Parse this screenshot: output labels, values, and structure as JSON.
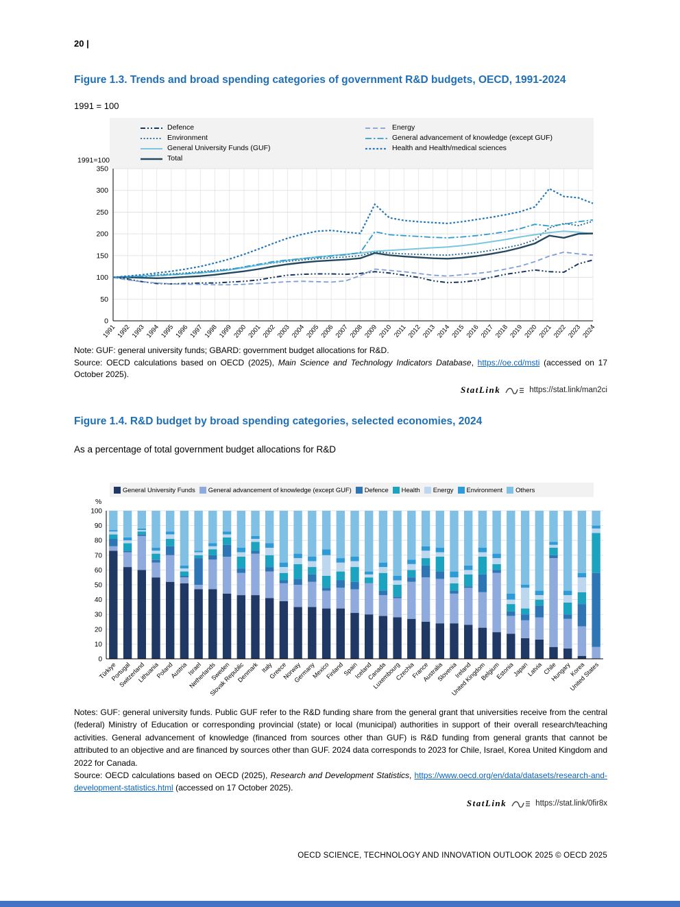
{
  "page": {
    "number": "20 |",
    "footer": "OECD SCIENCE, TECHNOLOGY AND INNOVATION OUTLOOK 2025 © OECD 2025"
  },
  "fig13": {
    "title": "Figure 1.3. Trends and broad spending categories of government R&D budgets, OECD, 1991-2024",
    "subtitle": "1991 = 100",
    "note": "Note: GUF: general university funds; GBARD: government budget allocations for R&D.",
    "source_prefix": "Source: OECD calculations based on OECD (2025), ",
    "source_italic": "Main Science and Technology Indicators Database",
    "source_mid": ", ",
    "source_link": "https://oe.cd/msti",
    "source_suffix": " (accessed on 17 October 2025).",
    "statlink_label": "StatLink",
    "statlink_url": "https://stat.link/man2ci"
  },
  "fig14": {
    "title": "Figure 1.4. R&D budget by broad spending categories, selected economies, 2024",
    "subtitle": "As a percentage of total government budget allocations for R&D",
    "notes": "Notes: GUF: general university funds. Public GUF refer to the R&D funding share from the general grant that universities receive from the central (federal) Ministry of Education or corresponding provincial (state) or local (municipal) authorities in support of their overall research/teaching activities. General advancement of knowledge (financed from sources other than GUF) is R&D funding from general grants that cannot be attributed to an objective and are financed by sources other than GUF. 2024 data corresponds to 2023 for Chile, Israel, Korea United Kingdom and 2022 for Canada.",
    "source_prefix": "Source: OECD calculations based on OECD (2025), ",
    "source_italic": "Research and Development Statistics",
    "source_mid": ", ",
    "source_link": "https://www.oecd.org/en/data/datasets/research-and-development-statistics.html",
    "source_suffix": " (accessed on 17 October 2025).",
    "statlink_label": "StatLink",
    "statlink_url": "https://stat.link/0fir8x"
  },
  "chart_data": [
    {
      "type": "line",
      "title": "Trends and broad spending categories of government R&D budgets, OECD, 1991-2024",
      "index_label": "1991=100",
      "xlabel": "",
      "ylabel": "1991=100",
      "ylim": [
        0,
        350
      ],
      "ytick_step": 50,
      "grid": true,
      "legend_position": "top",
      "x": [
        1991,
        1992,
        1993,
        1994,
        1995,
        1996,
        1997,
        1998,
        1999,
        2000,
        2001,
        2002,
        2003,
        2004,
        2005,
        2006,
        2007,
        2008,
        2009,
        2010,
        2011,
        2012,
        2013,
        2014,
        2015,
        2016,
        2017,
        2018,
        2019,
        2020,
        2021,
        2022,
        2023,
        2024
      ],
      "series": [
        {
          "name": "Defence",
          "color": "#17375e",
          "dash": "7 3 2 3 2 3",
          "width": 2,
          "values": [
            100,
            96,
            90,
            86,
            85,
            86,
            87,
            87,
            89,
            91,
            94,
            100,
            105,
            107,
            108,
            108,
            107,
            109,
            113,
            110,
            105,
            100,
            92,
            88,
            89,
            93,
            100,
            107,
            112,
            117,
            113,
            112,
            131,
            140
          ]
        },
        {
          "name": "Environment",
          "color": "#1d5e86",
          "dash": "2 2.6",
          "width": 1.8,
          "values": [
            100,
            101,
            103,
            106,
            108,
            110,
            113,
            116,
            119,
            123,
            128,
            133,
            137,
            140,
            143,
            145,
            147,
            150,
            159,
            156,
            154,
            153,
            152,
            151,
            154,
            157,
            162,
            168,
            175,
            186,
            214,
            224,
            219,
            229
          ]
        },
        {
          "name": "General University Funds (GUF)",
          "color": "#79c6de",
          "dash": "",
          "width": 2,
          "values": [
            100,
            102,
            103,
            104,
            106,
            108,
            110,
            113,
            117,
            122,
            128,
            134,
            139,
            143,
            147,
            150,
            153,
            156,
            160,
            162,
            164,
            166,
            168,
            170,
            173,
            177,
            182,
            187,
            193,
            198,
            203,
            206,
            204,
            200
          ]
        },
        {
          "name": "Total",
          "color": "#24485e",
          "dash": "",
          "width": 2.4,
          "values": [
            100,
            100,
            99,
            98,
            99,
            101,
            103,
            106,
            110,
            114,
            119,
            125,
            130,
            134,
            137,
            139,
            141,
            144,
            156,
            151,
            148,
            146,
            144,
            143,
            145,
            149,
            154,
            160,
            168,
            178,
            196,
            191,
            200,
            201
          ]
        },
        {
          "name": "Energy",
          "color": "#7f9fd4",
          "dash": "7 4",
          "width": 1.8,
          "values": [
            100,
            94,
            90,
            87,
            85,
            84,
            84,
            83,
            83,
            84,
            86,
            88,
            90,
            91,
            90,
            89,
            92,
            104,
            119,
            116,
            113,
            109,
            105,
            103,
            106,
            109,
            113,
            119,
            126,
            136,
            149,
            158,
            154,
            151
          ]
        },
        {
          "name": "General advancement of knowledge (except GUF)",
          "color": "#2f9ccd",
          "dash": "9 3 2.5 3",
          "width": 1.8,
          "values": [
            100,
            101,
            102,
            104,
            106,
            108,
            111,
            114,
            118,
            124,
            130,
            136,
            140,
            143,
            146,
            149,
            152,
            157,
            205,
            198,
            196,
            194,
            192,
            191,
            193,
            196,
            200,
            205,
            212,
            222,
            218,
            222,
            228,
            232
          ]
        },
        {
          "name": "Health and Health/medical sciences",
          "color": "#2376ba",
          "dash": "2.8 2.6",
          "width": 2.2,
          "values": [
            100,
            103,
            106,
            110,
            114,
            119,
            125,
            133,
            142,
            153,
            165,
            178,
            190,
            199,
            206,
            208,
            204,
            201,
            268,
            237,
            231,
            228,
            226,
            224,
            228,
            233,
            238,
            244,
            251,
            262,
            304,
            286,
            283,
            270
          ]
        }
      ]
    },
    {
      "type": "bar",
      "stacked": true,
      "title": "R&D budget by broad spending categories, selected economies, 2024",
      "ylabel": "%",
      "ylim": [
        0,
        100
      ],
      "ytick_step": 10,
      "grid": true,
      "legend_position": "top",
      "categories": [
        "Türkiye",
        "Portugal",
        "Switzerland",
        "Lithuania",
        "Poland",
        "Austria",
        "Israel",
        "Netherlands",
        "Sweden",
        "Slovak Republic",
        "Denmark",
        "Italy",
        "Greece",
        "Norway",
        "Germany",
        "Mexico",
        "Finland",
        "Spain",
        "Iceland",
        "Canada",
        "Luxembourg",
        "Czechia",
        "France",
        "Australia",
        "Slovenia",
        "Ireland",
        "United Kingdom",
        "Belgium",
        "Estonia",
        "Japan",
        "Latvia",
        "Chile",
        "Hungary",
        "Korea",
        "United States"
      ],
      "series": [
        {
          "name": "General University Funds",
          "color": "#1f3864",
          "values": [
            73,
            62,
            60,
            55,
            52,
            51,
            47,
            47,
            44,
            43,
            43,
            41,
            39,
            35,
            35,
            34,
            34,
            31,
            30,
            29,
            28,
            27,
            25,
            24,
            24,
            23,
            21,
            18,
            17,
            14,
            13,
            8,
            7,
            2,
            0
          ]
        },
        {
          "name": "General advancement of knowledge (except GUF)",
          "color": "#8faadc",
          "values": [
            3,
            10,
            23,
            10,
            18,
            4,
            3,
            20,
            25,
            15,
            28,
            18,
            12,
            15,
            17,
            12,
            14,
            16,
            21,
            14,
            13,
            25,
            30,
            30,
            20,
            25,
            24,
            40,
            12,
            12,
            15,
            60,
            20,
            20,
            8
          ]
        },
        {
          "name": "Defence",
          "color": "#2e75b6",
          "values": [
            5,
            1,
            1,
            2,
            6,
            1,
            18,
            3,
            8,
            3,
            2,
            3,
            2,
            4,
            5,
            2,
            5,
            5,
            0,
            3,
            1,
            3,
            8,
            5,
            2,
            1,
            12,
            2,
            3,
            4,
            8,
            2,
            3,
            15,
            50
          ]
        },
        {
          "name": "Health",
          "color": "#1ba3bf",
          "values": [
            3,
            5,
            2,
            4,
            5,
            3,
            2,
            4,
            5,
            8,
            6,
            8,
            5,
            10,
            5,
            8,
            6,
            10,
            4,
            12,
            8,
            5,
            5,
            10,
            5,
            8,
            12,
            4,
            5,
            4,
            4,
            5,
            8,
            8,
            27
          ]
        },
        {
          "name": "Energy",
          "color": "#bdd7ee",
          "values": [
            2,
            2,
            1,
            2,
            3,
            2,
            2,
            2,
            2,
            3,
            2,
            5,
            4,
            4,
            4,
            14,
            6,
            4,
            2,
            4,
            3,
            4,
            5,
            3,
            4,
            3,
            3,
            4,
            3,
            14,
            3,
            2,
            5,
            10,
            3
          ]
        },
        {
          "name": "Environment",
          "color": "#2e9bd6",
          "values": [
            1,
            2,
            1,
            2,
            2,
            2,
            1,
            2,
            2,
            3,
            2,
            3,
            3,
            3,
            3,
            4,
            3,
            3,
            2,
            3,
            3,
            3,
            3,
            3,
            4,
            3,
            3,
            3,
            4,
            2,
            3,
            2,
            3,
            3,
            2
          ]
        },
        {
          "name": "Others",
          "color": "#7fc0e4",
          "values": [
            13,
            18,
            12,
            25,
            14,
            37,
            27,
            22,
            14,
            25,
            17,
            22,
            35,
            29,
            31,
            26,
            32,
            31,
            41,
            35,
            44,
            33,
            24,
            25,
            41,
            37,
            25,
            29,
            56,
            50,
            54,
            21,
            54,
            42,
            10
          ]
        }
      ]
    }
  ]
}
